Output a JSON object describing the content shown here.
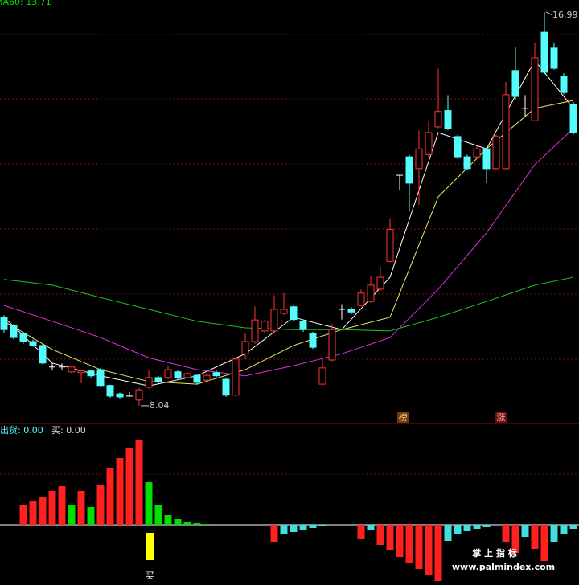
{
  "chart_data": [
    {
      "type": "candlestick",
      "title": "MA60: 13.71",
      "title_color": "#00e000",
      "up_color": "#ff3232",
      "down_color": "#54fcfc",
      "flat_color": "#ffffff",
      "ylim": [
        7.6,
        17.3
      ],
      "open": [
        10.05,
        9.86,
        9.68,
        9.5,
        9.41,
        8.92,
        8.92,
        8.81,
        8.79,
        8.83,
        8.86,
        8.5,
        8.31,
        8.26,
        8.17,
        8.46,
        8.68,
        8.68,
        8.81,
        8.68,
        8.73,
        8.62,
        8.79,
        8.64,
        8.28,
        9.22,
        9.5,
        9.74,
        9.74,
        10.14,
        10.29,
        9.96,
        9.68,
        8.53,
        9.08,
        10.23,
        10.23,
        10.32,
        10.41,
        10.69,
        11.32,
        13.28,
        13.7,
        13.43,
        13.75,
        14.38,
        14.75,
        14.16,
        13.7,
        13.7,
        13.88,
        13.43,
        13.43,
        15.66,
        14.8,
        14.52,
        16.53,
        16.17,
        15.53,
        14.89
      ],
      "close": [
        9.77,
        9.59,
        9.5,
        9.41,
        9.01,
        8.92,
        8.92,
        8.92,
        8.83,
        8.72,
        8.5,
        8.26,
        8.24,
        8.26,
        8.4,
        8.68,
        8.59,
        8.86,
        8.68,
        8.77,
        8.57,
        8.73,
        8.72,
        8.28,
        9.1,
        9.5,
        9.99,
        9.96,
        10.23,
        10.23,
        10.0,
        9.77,
        9.37,
        8.9,
        9.77,
        10.23,
        10.17,
        10.6,
        10.78,
        10.96,
        12.05,
        13.28,
        13.1,
        13.88,
        14.25,
        14.73,
        14.34,
        13.7,
        13.43,
        13.88,
        13.43,
        14.16,
        15.11,
        15.07,
        14.8,
        15.95,
        15.62,
        15.71,
        15.16,
        14.25
      ],
      "high": [
        10.1,
        9.9,
        9.72,
        9.55,
        9.45,
        9.0,
        9.0,
        8.95,
        8.85,
        8.86,
        8.9,
        8.52,
        8.34,
        8.35,
        8.45,
        8.85,
        8.72,
        8.95,
        8.85,
        8.8,
        8.76,
        8.78,
        8.85,
        8.68,
        9.12,
        9.7,
        10.3,
        10.0,
        10.55,
        10.6,
        10.32,
        9.99,
        9.72,
        9.1,
        9.9,
        10.35,
        10.28,
        10.68,
        11.0,
        11.2,
        12.3,
        13.28,
        13.75,
        14.3,
        14.5,
        15.7,
        15.1,
        14.2,
        13.75,
        13.95,
        13.92,
        14.2,
        15.4,
        16.2,
        15.1,
        16.3,
        16.99,
        16.3,
        15.6,
        14.95
      ],
      "low": [
        9.7,
        9.55,
        9.45,
        9.38,
        8.98,
        8.85,
        8.85,
        8.78,
        8.55,
        8.68,
        8.48,
        8.22,
        8.2,
        8.24,
        8.04,
        8.42,
        8.55,
        8.64,
        8.64,
        8.66,
        8.52,
        8.6,
        8.68,
        8.24,
        8.25,
        9.1,
        9.45,
        9.7,
        9.7,
        10.1,
        9.95,
        9.72,
        9.33,
        8.53,
        9.05,
        10.0,
        10.12,
        10.3,
        10.38,
        10.66,
        11.3,
        12.95,
        12.45,
        12.6,
        13.7,
        14.35,
        14.3,
        13.65,
        13.4,
        13.66,
        13.1,
        13.4,
        13.4,
        15.0,
        14.6,
        14.5,
        15.58,
        15.68,
        15.12,
        14.2
      ],
      "lines": [
        {
          "color": "#ffffff",
          "x": [
            0,
            5,
            10,
            15,
            20,
            25,
            30,
            35,
            40,
            45,
            50,
            55,
            59
          ],
          "values": [
            10.05,
            9.01,
            8.72,
            8.49,
            8.72,
            9.22,
            10.05,
            9.77,
            10.96,
            14.25,
            13.88,
            15.89,
            14.8
          ]
        },
        {
          "color": "#e8e868",
          "x": [
            0,
            5,
            10,
            15,
            20,
            25,
            30,
            35,
            40,
            45,
            50,
            55,
            59
          ],
          "values": [
            9.96,
            9.32,
            8.86,
            8.59,
            8.53,
            8.86,
            9.41,
            9.77,
            10.05,
            12.79,
            13.88,
            14.8,
            14.98
          ]
        },
        {
          "color": "#e030e0",
          "x": [
            0,
            5,
            10,
            15,
            20,
            25,
            30,
            35,
            40,
            45,
            50,
            55,
            59
          ],
          "values": [
            10.32,
            9.96,
            9.59,
            9.13,
            8.86,
            8.72,
            8.95,
            9.22,
            9.59,
            10.69,
            11.97,
            13.52,
            14.34
          ]
        },
        {
          "color": "#20c020",
          "x": [
            0,
            5,
            10,
            15,
            20,
            25,
            30,
            35,
            40,
            45,
            50,
            55,
            59
          ],
          "values": [
            10.91,
            10.78,
            10.5,
            10.23,
            9.96,
            9.81,
            9.77,
            9.77,
            9.74,
            10.05,
            10.41,
            10.78,
            10.96
          ]
        }
      ],
      "high_label": "16.99",
      "low_label": "8.04",
      "badges": [
        "榜",
        "涨"
      ]
    },
    {
      "type": "bar",
      "labels": [
        "出货: 0.00",
        "买: 0.00"
      ],
      "signal_label": "买",
      "ylim": [
        -75,
        108
      ],
      "x": [
        2,
        3,
        4,
        5,
        6,
        7,
        8,
        9,
        10,
        11,
        12,
        13,
        14,
        15,
        16,
        17,
        18,
        19,
        20,
        21,
        28,
        29,
        30,
        31,
        32,
        33,
        37,
        38,
        39,
        40,
        41,
        42,
        43,
        44,
        45,
        46,
        47,
        48,
        49,
        50,
        52,
        53,
        54,
        55,
        56,
        57,
        58,
        59
      ],
      "values": [
        25,
        30,
        35,
        42,
        48,
        25,
        42,
        22,
        50,
        70,
        83,
        95,
        106,
        53,
        25,
        12,
        7,
        4,
        2,
        1,
        -22,
        -12,
        -9,
        -6,
        -4,
        -2,
        -18,
        -6,
        -25,
        -32,
        -40,
        -48,
        -55,
        -62,
        -70,
        -20,
        -12,
        -8,
        -5,
        -3,
        -22,
        -35,
        -15,
        -30,
        -45,
        -22,
        -12,
        -5
      ],
      "colors": [
        "#ff2020",
        "#ff2020",
        "#ff2020",
        "#ff2020",
        "#ff2020",
        "#00e000",
        "#ff2020",
        "#00e000",
        "#ff2020",
        "#ff2020",
        "#ff2020",
        "#ff2020",
        "#ff2020",
        "#00e000",
        "#00e000",
        "#00e000",
        "#00e000",
        "#00e000",
        "#00e000",
        "#00e000",
        "#ff2020",
        "#40e0e0",
        "#40e0e0",
        "#40e0e0",
        "#40e0e0",
        "#40e0e0",
        "#ff2020",
        "#40e0e0",
        "#ff2020",
        "#ff2020",
        "#ff2020",
        "#ff2020",
        "#ff2020",
        "#ff2020",
        "#ff2020",
        "#40e0e0",
        "#40e0e0",
        "#40e0e0",
        "#40e0e0",
        "#40e0e0",
        "#ff2020",
        "#ff2020",
        "#40e0e0",
        "#ff2020",
        "#ff2020",
        "#40e0e0",
        "#40e0e0",
        "#40e0e0"
      ]
    }
  ],
  "watermark": {
    "title": "掌 上 指 标",
    "url": "www.palmindex.com"
  }
}
